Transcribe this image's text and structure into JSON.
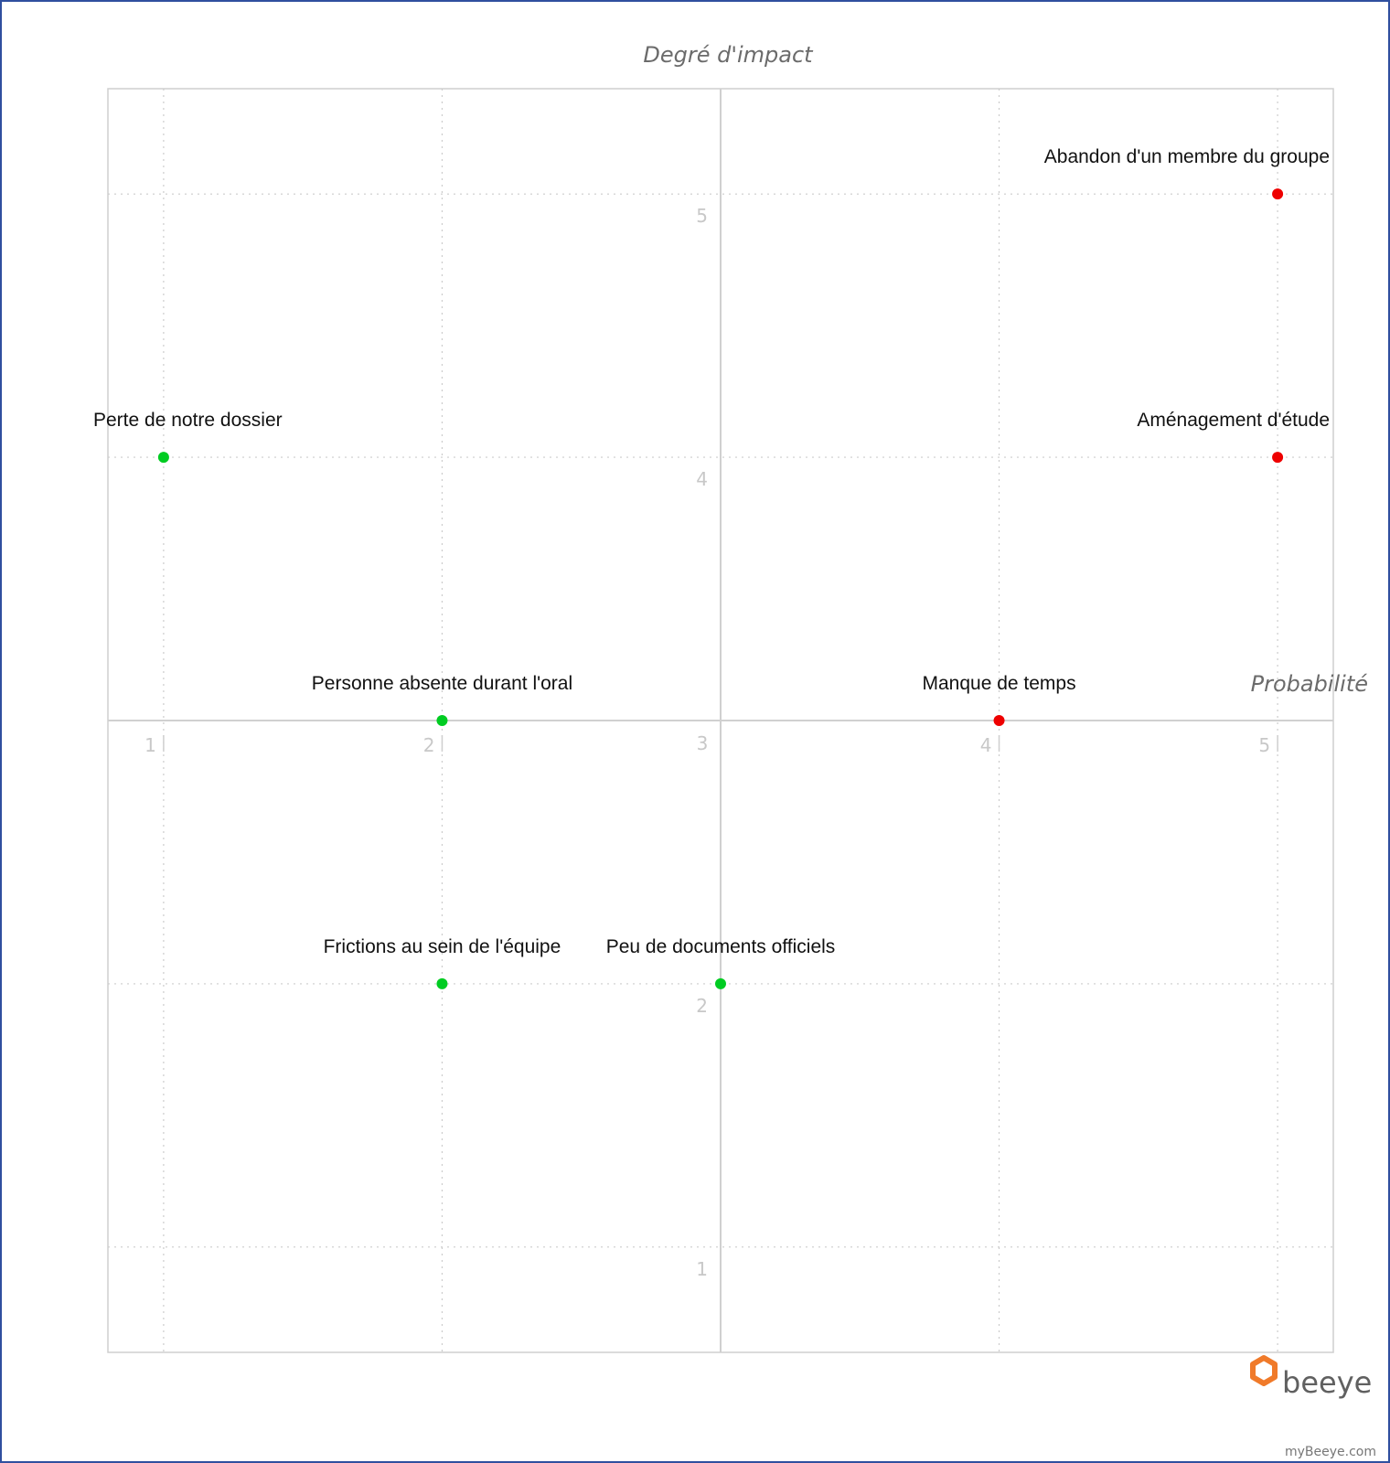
{
  "chart_data": {
    "type": "scatter",
    "title": "",
    "xlabel": "Probabilité",
    "ylabel": "Degré d'impact",
    "xlim": [
      0.8,
      5.2
    ],
    "ylim": [
      0.6,
      5.4
    ],
    "center": [
      3,
      3
    ],
    "x_ticks": [
      1,
      2,
      3,
      4,
      5
    ],
    "y_ticks": [
      1,
      2,
      3,
      4,
      5
    ],
    "grid": true,
    "points": [
      {
        "label": "Abandon d'un membre du groupe",
        "x": 5,
        "y": 5,
        "color": "#ee0000"
      },
      {
        "label": "Aménagement d'étude",
        "x": 5,
        "y": 4,
        "color": "#ee0000"
      },
      {
        "label": "Manque de temps",
        "x": 4,
        "y": 3,
        "color": "#ee0000"
      },
      {
        "label": "Perte de notre dossier",
        "x": 1,
        "y": 4,
        "color": "#00cc22"
      },
      {
        "label": "Personne absente durant l'oral",
        "x": 2,
        "y": 3,
        "color": "#00cc22"
      },
      {
        "label": "Frictions au sein de l'équipe",
        "x": 2,
        "y": 2,
        "color": "#00cc22"
      },
      {
        "label": "Peu de documents officiels",
        "x": 3,
        "y": 2,
        "color": "#00cc22"
      }
    ]
  },
  "branding": {
    "logo_text": "beeye",
    "logo_color": "#f07a2a",
    "footer": "myBeeye.com"
  }
}
